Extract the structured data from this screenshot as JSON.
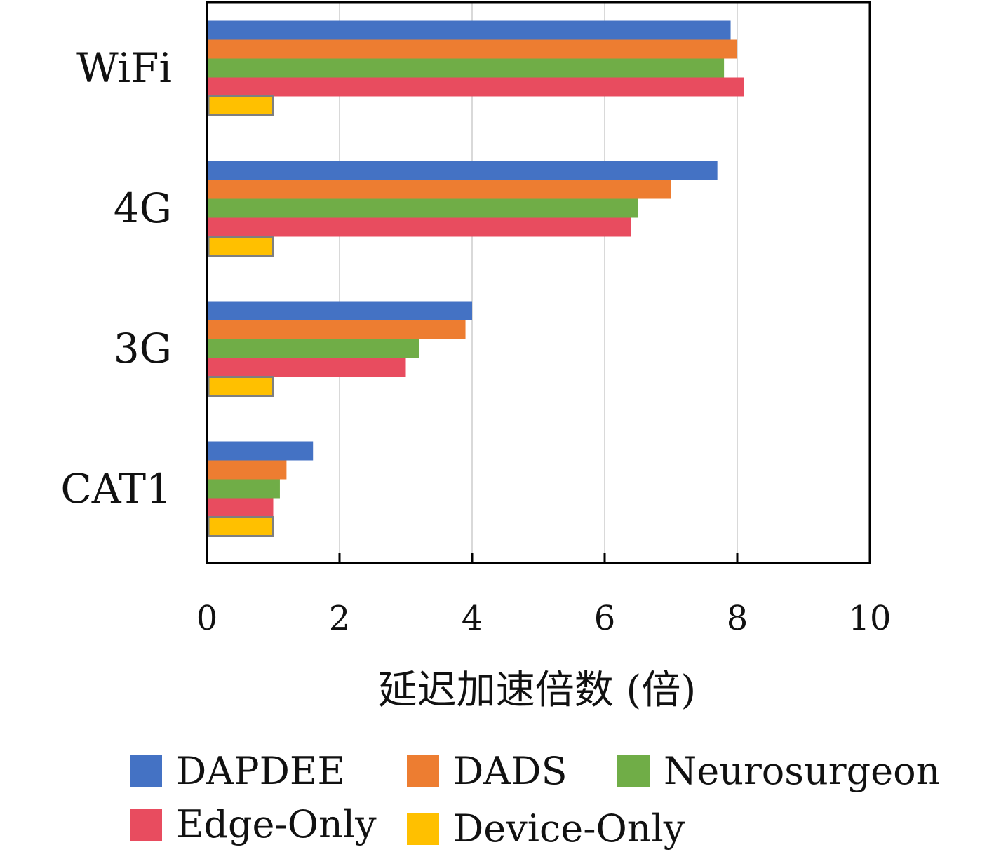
{
  "chart_data": {
    "type": "bar",
    "orientation": "horizontal",
    "title": "",
    "xlabel": "延迟加速倍数 (倍)",
    "ylabel": "",
    "xlim": [
      0,
      10
    ],
    "xticks": [
      0,
      2,
      4,
      6,
      8,
      10
    ],
    "grid": true,
    "legend_position": "bottom",
    "categories": [
      "WiFi",
      "4G",
      "3G",
      "CAT1"
    ],
    "series": [
      {
        "name": "DAPDEE",
        "color": "#4472C4",
        "values": [
          7.9,
          7.7,
          4.0,
          1.6
        ]
      },
      {
        "name": "DADS",
        "color": "#ED7D31",
        "values": [
          8.0,
          7.0,
          3.9,
          1.2
        ]
      },
      {
        "name": "Neurosurgeon",
        "color": "#70AD47",
        "values": [
          7.8,
          6.5,
          3.2,
          1.1
        ]
      },
      {
        "name": "Edge-Only",
        "color": "#E84C5F",
        "values": [
          8.1,
          6.4,
          3.0,
          1.0
        ]
      },
      {
        "name": "Device-Only",
        "color": "#FFC000",
        "values": [
          1.0,
          1.0,
          1.0,
          1.0
        ]
      }
    ]
  }
}
